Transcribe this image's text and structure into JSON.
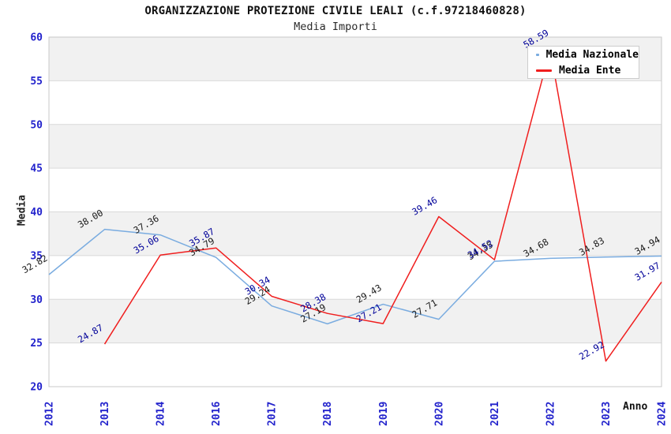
{
  "title": "ORGANIZZAZIONE PROTEZIONE CIVILE LEALI (c.f.97218460828)",
  "subtitle": "Media Importi",
  "axes": {
    "y_label": "Media",
    "x_label": "Anno"
  },
  "legend": {
    "items": [
      {
        "label": "Media Nazionale",
        "color": "#7aace0"
      },
      {
        "label": "Media Ente",
        "color": "#f01e1e"
      }
    ]
  },
  "colors": {
    "tick_label": "#2222cc",
    "grid_line": "#d9d9d9",
    "band_fill": "#f1f1f1",
    "plot_border": "#c8c8c8"
  },
  "chart_data": {
    "type": "line",
    "title": "Media Importi",
    "xlabel": "Anno",
    "ylabel": "Media",
    "categories": [
      "2012",
      "2013",
      "2014",
      "2016",
      "2017",
      "2018",
      "2019",
      "2020",
      "2021",
      "2022",
      "2023",
      "2024"
    ],
    "series": [
      {
        "name": "Media Nazionale",
        "color": "#7aace0",
        "label_color": "#1a1a1a",
        "values": [
          32.82,
          38.0,
          37.36,
          34.79,
          29.24,
          27.19,
          29.43,
          27.71,
          34.35,
          34.68,
          34.83,
          34.94
        ]
      },
      {
        "name": "Media Ente",
        "color": "#f01e1e",
        "label_color": "#000099",
        "values": [
          null,
          24.87,
          35.06,
          35.87,
          30.34,
          28.38,
          27.21,
          39.46,
          34.52,
          58.59,
          22.92,
          31.97
        ]
      }
    ],
    "ylim": [
      20,
      60
    ],
    "y_ticks": [
      20,
      25,
      30,
      35,
      40,
      45,
      50,
      55,
      60
    ],
    "grid": "horizontal-alternating-bands",
    "legend_position": "top-right",
    "point_labels": "rotated -30deg, two decimals"
  }
}
